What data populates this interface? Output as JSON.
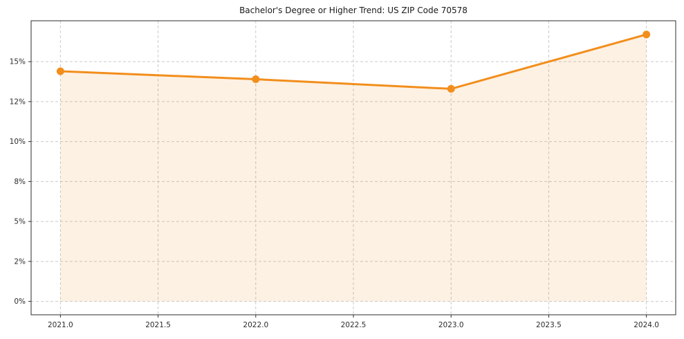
{
  "chart_data": {
    "type": "line",
    "title": "Bachelor's Degree or Higher Trend: US ZIP Code 70578",
    "x": [
      2021,
      2022,
      2023,
      2024
    ],
    "series": [
      {
        "name": "Bachelor's Degree or Higher %",
        "values": [
          14.4,
          13.9,
          13.3,
          16.7
        ]
      }
    ],
    "x_ticks": [
      2021.0,
      2021.5,
      2022.0,
      2022.5,
      2023.0,
      2023.5,
      2024.0
    ],
    "x_tick_labels": [
      "2021.0",
      "2021.5",
      "2022.0",
      "2022.5",
      "2023.0",
      "2023.5",
      "2024.0"
    ],
    "y_ticks": [
      0,
      2.5,
      5,
      7.5,
      10,
      12.5,
      15
    ],
    "y_tick_labels": [
      "0%",
      "2%",
      "5%",
      "8%",
      "10%",
      "12%",
      "15%"
    ],
    "xlim": [
      2020.85,
      2024.15
    ],
    "ylim": [
      -0.84,
      17.56
    ],
    "xlabel": "",
    "ylabel": "",
    "grid": true,
    "grid_style": "dashed",
    "legend": "none",
    "area_fill_to": 0,
    "colors": {
      "line": "#f28e1c",
      "marker": "#f28e1c",
      "fill": "#f28e1c",
      "fill_opacity": 0.12,
      "grid": "#c9c9c9",
      "spine": "#2b2b2b",
      "title_text": "#1a1a1a",
      "tick_text": "#2b2b2b",
      "background": "#ffffff"
    }
  }
}
